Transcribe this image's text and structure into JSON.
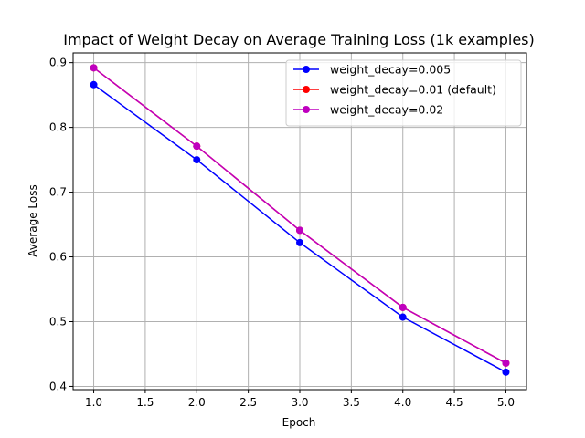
{
  "chart_data": {
    "type": "line",
    "title": "Impact of Weight Decay on Average Training Loss (1k examples)",
    "xlabel": "Epoch",
    "ylabel": "Average Loss",
    "xlim": [
      0.8,
      5.2
    ],
    "ylim": [
      0.395,
      0.915
    ],
    "xticks": [
      "1.0",
      "1.5",
      "2.0",
      "2.5",
      "3.0",
      "3.5",
      "4.0",
      "4.5",
      "5.0"
    ],
    "yticks": [
      "0.4",
      "0.5",
      "0.6",
      "0.7",
      "0.8",
      "0.9"
    ],
    "grid": true,
    "legend_position": "top-right",
    "x": [
      1,
      2,
      3,
      4,
      5
    ],
    "series": [
      {
        "name": "weight_decay=0.005",
        "color": "#0000ff",
        "marker": "circle",
        "values": [
          0.866,
          0.75,
          0.622,
          0.507,
          0.422
        ]
      },
      {
        "name": "weight_decay=0.01 (default)",
        "color": "#ff0000",
        "marker": "circle",
        "values": [
          0.892,
          0.771,
          0.641,
          0.522,
          0.436
        ]
      },
      {
        "name": "weight_decay=0.02",
        "color": "#bf00bf",
        "marker": "circle",
        "values": [
          0.892,
          0.771,
          0.641,
          0.522,
          0.436
        ]
      }
    ]
  }
}
